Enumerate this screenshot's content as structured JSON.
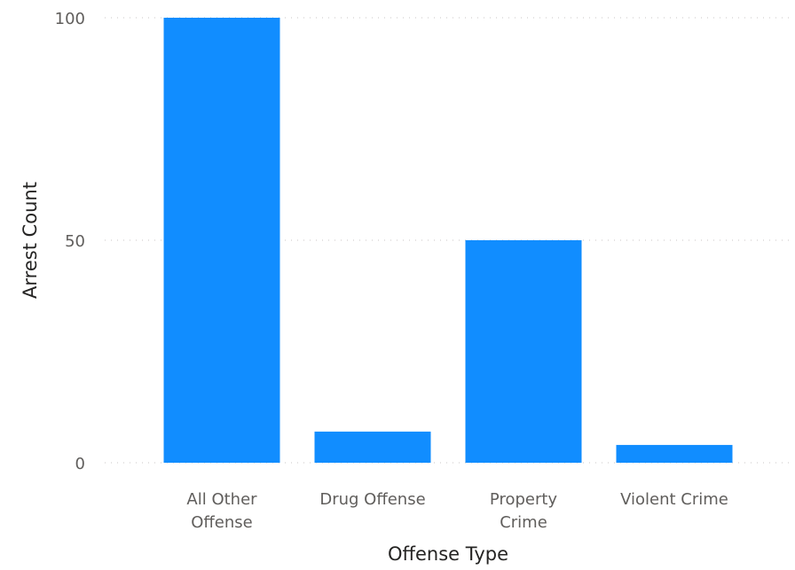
{
  "chart_data": {
    "type": "bar",
    "categories": [
      "All Other Offense",
      "Drug Offense",
      "Property Crime",
      "Violent Crime"
    ],
    "category_label_lines": [
      [
        "All Other",
        "Offense"
      ],
      [
        "Drug Offense"
      ],
      [
        "Property",
        "Crime"
      ],
      [
        "Violent Crime"
      ]
    ],
    "values": [
      100,
      7,
      50,
      4
    ],
    "xlabel": "Offense Type",
    "ylabel": "Arrest Count",
    "ylim": [
      0,
      100
    ],
    "yticks": [
      0,
      50,
      100
    ],
    "grid": true,
    "bar_color": "#118DFF"
  }
}
